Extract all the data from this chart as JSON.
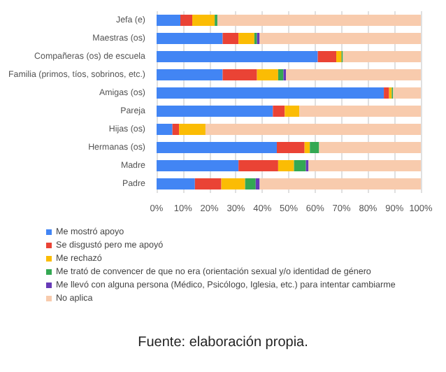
{
  "chart_data": {
    "type": "bar",
    "orientation": "horizontal",
    "stacked": true,
    "categories": [
      "Jefa (e)",
      "Maestras (os)",
      "Compañeras (os) de escuela",
      "Familia (primos, tíos, sobrinos, etc.)",
      "Amigas (os)",
      "Pareja",
      "Hijas (os)",
      "Hermanas (os)",
      "Madre",
      "Padre"
    ],
    "series": [
      {
        "name": "Me mostró apoyo",
        "color": "#4285f4",
        "values": [
          9,
          25,
          61,
          25,
          86,
          44,
          6,
          45.5,
          31,
          14.5
        ]
      },
      {
        "name": "Se disgustó pero me apoyó",
        "color": "#ea4335",
        "values": [
          4.5,
          6,
          7,
          13,
          2,
          4.5,
          2.5,
          10.5,
          15,
          10
        ]
      },
      {
        "name": "Me rechazó",
        "color": "#fbbc04",
        "values": [
          8.5,
          6,
          2,
          8,
          1,
          5.5,
          10,
          2,
          6,
          9
        ]
      },
      {
        "name": "Me trató de convencer de que no era (orientación sexual y/o identidad de género",
        "color": "#34a853",
        "values": [
          1,
          1,
          0.5,
          2,
          0.5,
          0,
          0,
          3.5,
          4.5,
          4
        ]
      },
      {
        "name": "Me llevó con alguna persona (Médico, Psicólogo, Iglesia, etc.) para intentar cambiarme",
        "color": "#673ab7",
        "values": [
          0,
          1,
          0,
          1,
          0,
          0,
          0,
          0,
          1,
          1.5
        ]
      },
      {
        "name": "No aplica",
        "color": "#f8cbad",
        "values": [
          77,
          61,
          29.5,
          51,
          10.5,
          46,
          81.5,
          38.5,
          42.5,
          61
        ]
      }
    ],
    "xlim": [
      0,
      100
    ],
    "xticks": [
      {
        "value": 0,
        "label": "0%"
      },
      {
        "value": 10,
        "label": "10%"
      },
      {
        "value": 20,
        "label": "20%"
      },
      {
        "value": 30,
        "label": "30%"
      },
      {
        "value": 40,
        "label": "40%"
      },
      {
        "value": 50,
        "label": "50%"
      },
      {
        "value": 60,
        "label": "60%"
      },
      {
        "value": 70,
        "label": "70%"
      },
      {
        "value": 80,
        "label": "80%"
      },
      {
        "value": 90,
        "label": "90%"
      },
      {
        "value": 100,
        "label": "100%"
      }
    ],
    "grid": "x",
    "legend": "bottom",
    "annotations": [
      "Fuente: elaboración propia."
    ]
  }
}
